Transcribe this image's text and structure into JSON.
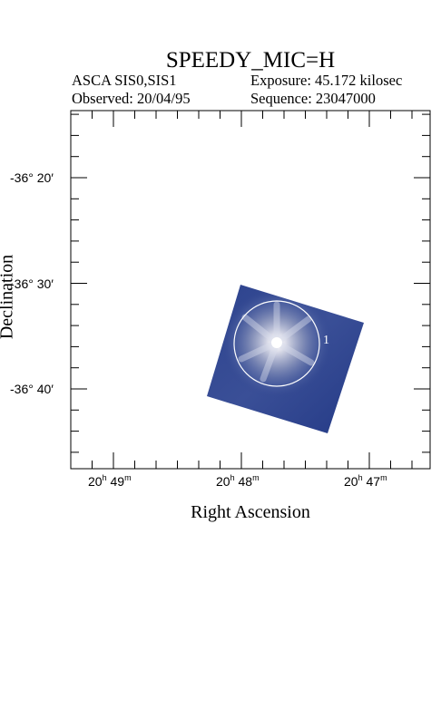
{
  "title": "SPEEDY_MIC=H",
  "instrument": "ASCA SIS0,SIS1",
  "observed": "Observed: 20/04/95",
  "exposure": "Exposure: 45.172 kilosec",
  "sequence": "Sequence: 23047000",
  "x_axis_label": "Right Ascension",
  "y_axis_label": "Declination",
  "x_ticks": [
    {
      "h": "20",
      "m": "49"
    },
    {
      "h": "20",
      "m": "48"
    },
    {
      "h": "20",
      "m": "47"
    }
  ],
  "y_ticks": [
    "-36° 20′",
    "-36° 30′",
    "-36° 40′"
  ],
  "source_label": "1",
  "colors": {
    "image_bg": "#2a3f8a",
    "source": "#ffffff",
    "frame": "#000000"
  }
}
